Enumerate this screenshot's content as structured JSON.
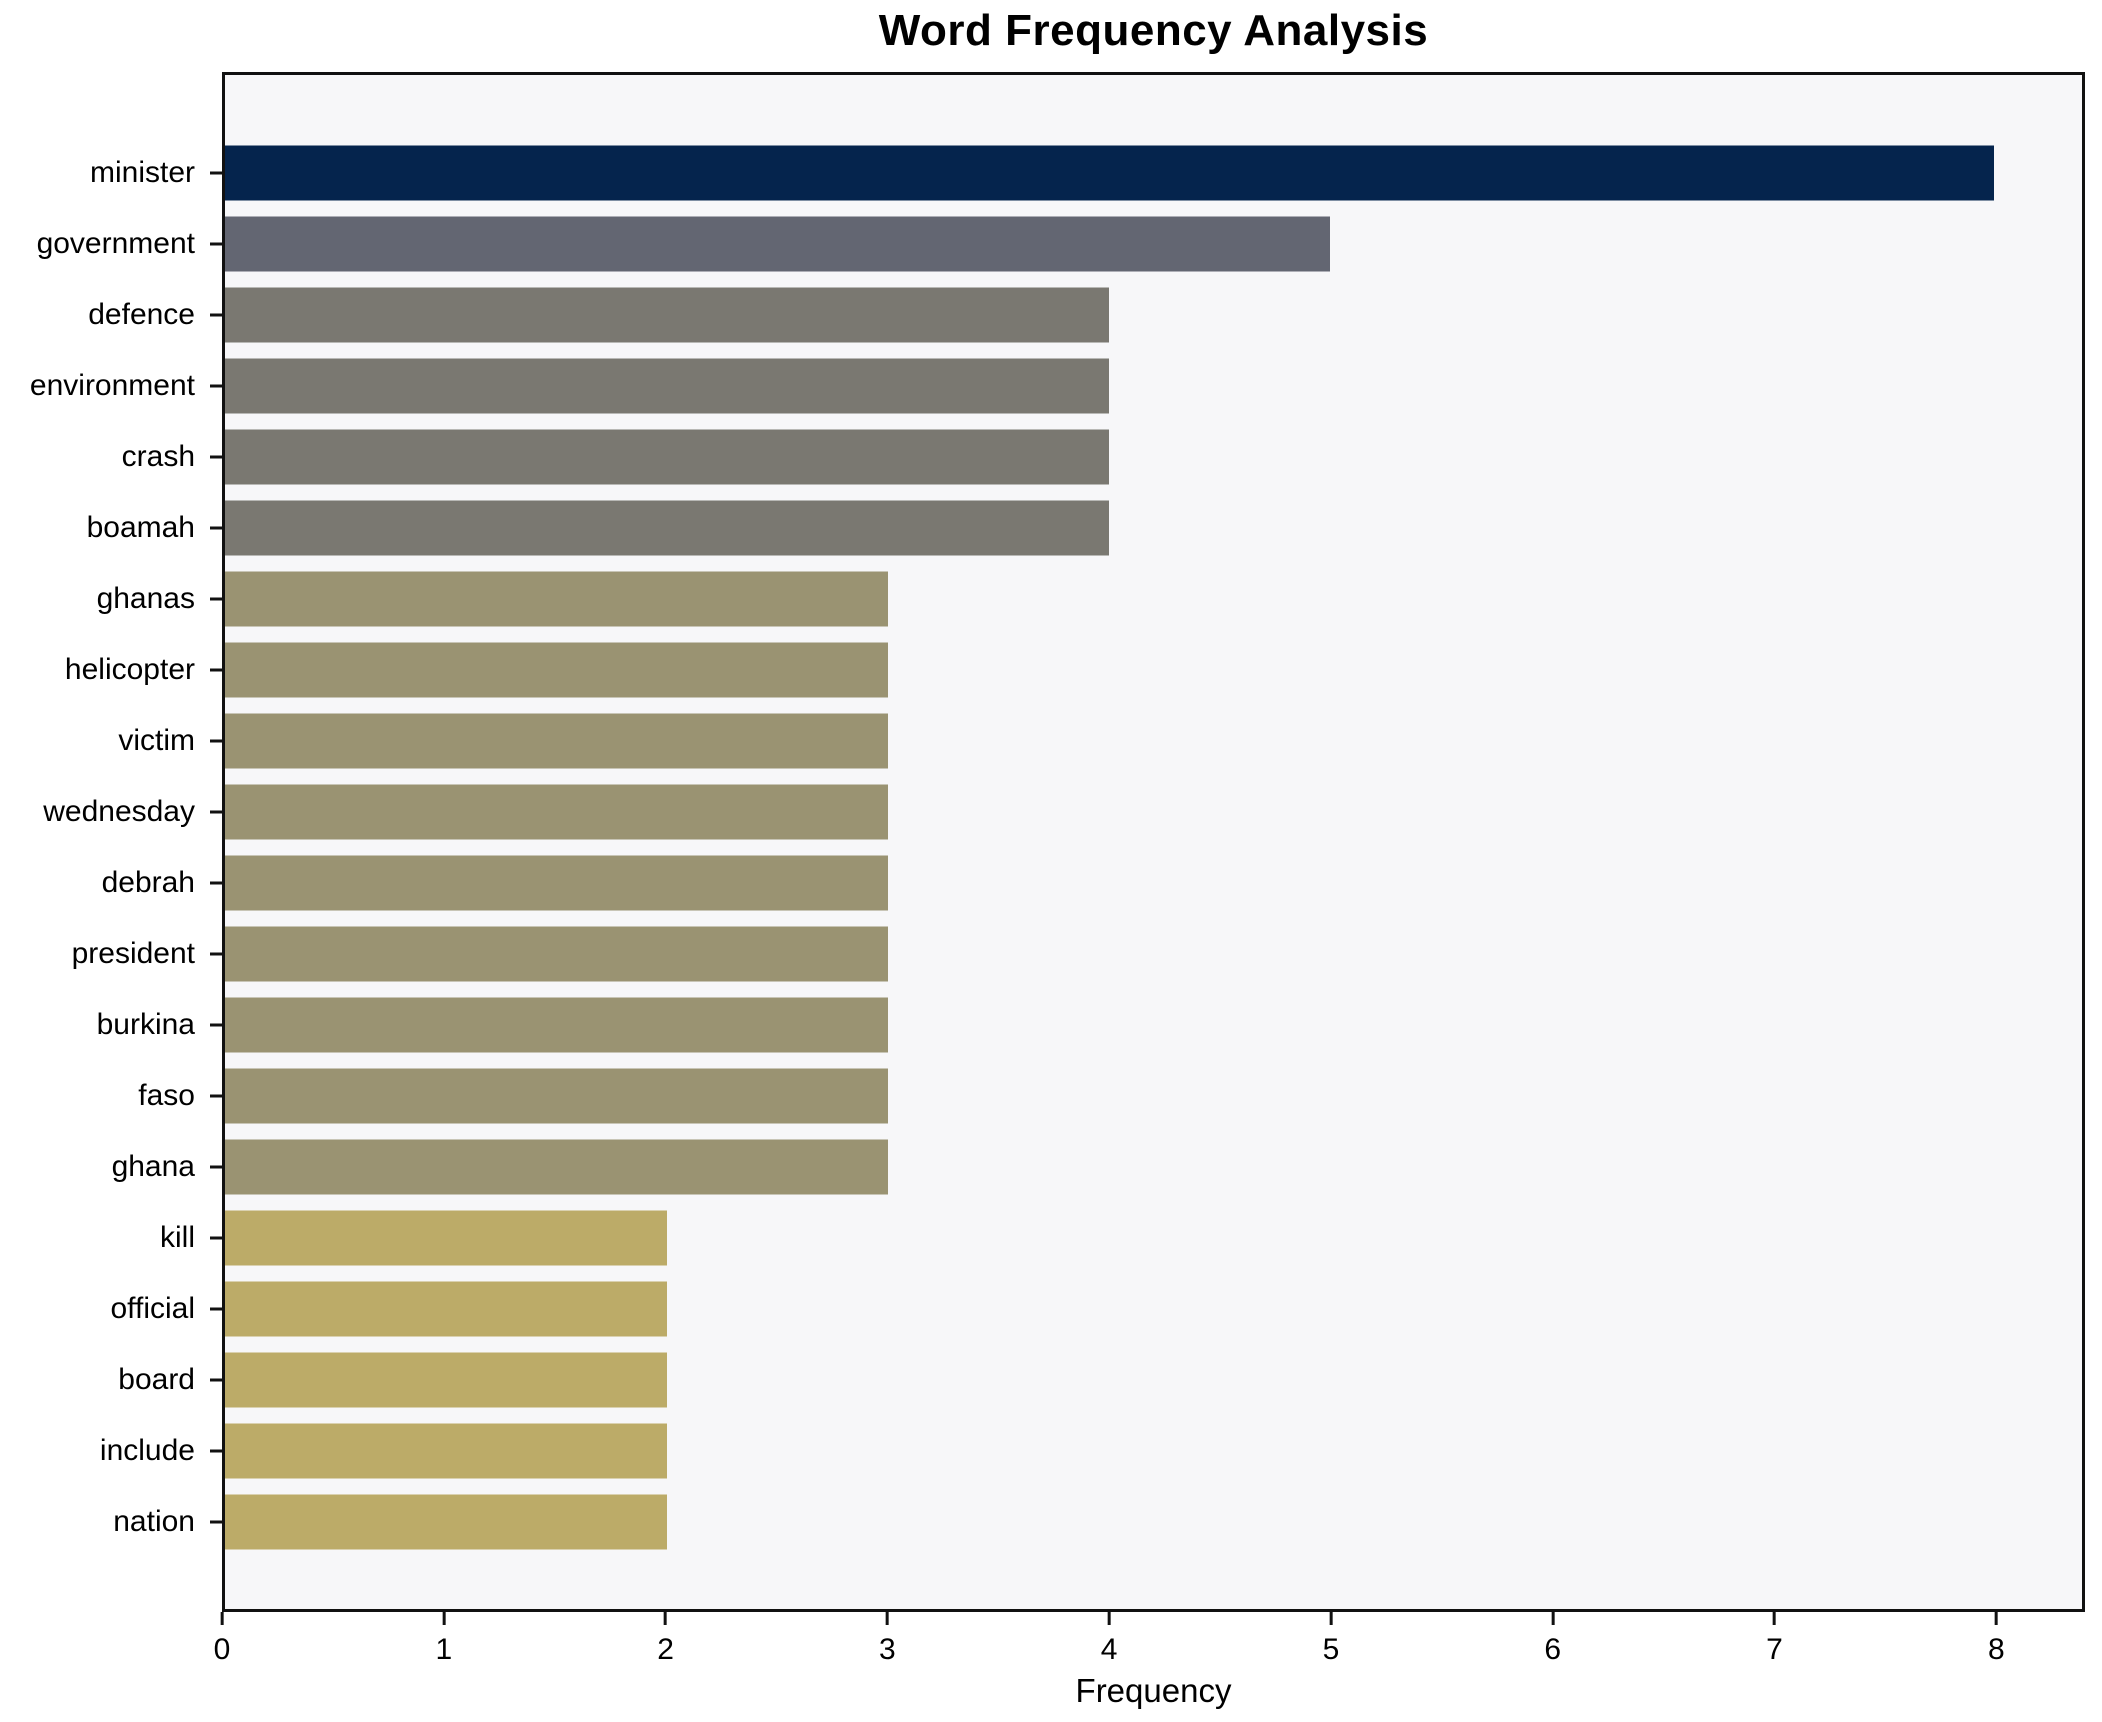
{
  "chart_data": {
    "type": "bar",
    "orientation": "horizontal",
    "title": "Word Frequency Analysis",
    "xlabel": "Frequency",
    "ylabel": "",
    "categories": [
      "minister",
      "government",
      "defence",
      "environment",
      "crash",
      "boamah",
      "ghanas",
      "helicopter",
      "victim",
      "wednesday",
      "debrah",
      "president",
      "burkina",
      "faso",
      "ghana",
      "kill",
      "official",
      "board",
      "include",
      "nation"
    ],
    "values": [
      8,
      5,
      4,
      4,
      4,
      4,
      3,
      3,
      3,
      3,
      3,
      3,
      3,
      3,
      3,
      2,
      2,
      2,
      2,
      2
    ],
    "bar_colors": [
      "#05244d",
      "#636672",
      "#7a7871",
      "#7a7871",
      "#7a7871",
      "#7a7871",
      "#9a9372",
      "#9a9372",
      "#9a9372",
      "#9a9372",
      "#9a9372",
      "#9a9372",
      "#9a9372",
      "#9a9372",
      "#9a9372",
      "#bcab68",
      "#bcab68",
      "#bcab68",
      "#bcab68",
      "#bcab68"
    ],
    "xticks": [
      "0",
      "1",
      "2",
      "3",
      "4",
      "5",
      "6",
      "7",
      "8"
    ],
    "xlim": [
      0,
      8.4
    ],
    "grid": false,
    "legend": "none",
    "plot_background": "#f7f7f9",
    "axis_color": "#111111"
  }
}
